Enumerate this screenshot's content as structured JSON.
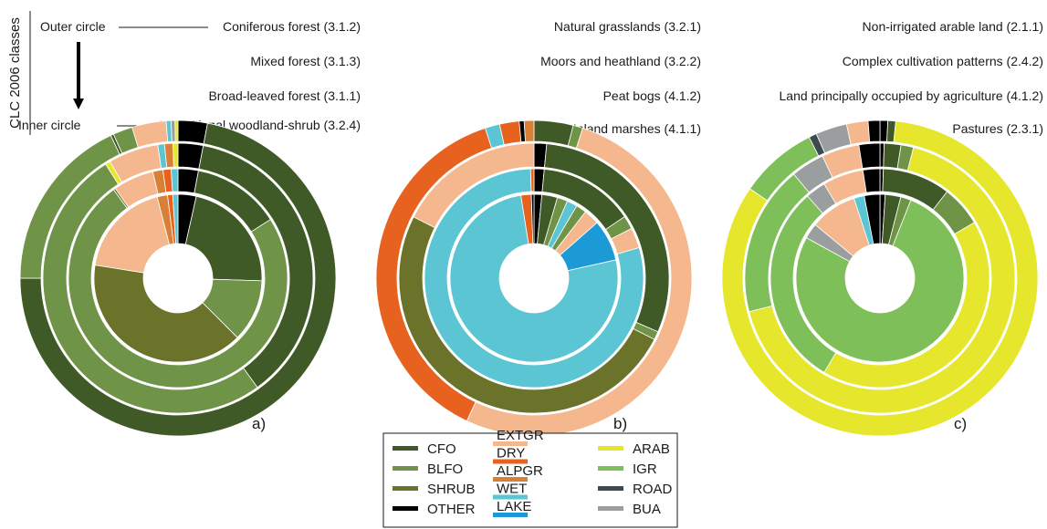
{
  "figure": {
    "vertical_title": "CLC 2006 classes",
    "outer_label": "Outer circle",
    "inner_label": "Inner circle"
  },
  "legend": {
    "items": [
      {
        "code": "CFO",
        "color": "#3f5a27"
      },
      {
        "code": "BLFO",
        "color": "#6f9347"
      },
      {
        "code": "SHRUB",
        "color": "#6b7229"
      },
      {
        "code": "OTHER",
        "color": "#000000"
      },
      {
        "code": "EXTGR",
        "color": "#f5b78e"
      },
      {
        "code": "DRY",
        "color": "#e8621f"
      },
      {
        "code": "ALPGR",
        "color": "#d98038"
      },
      {
        "code": "WET",
        "color": "#5bc5d3"
      },
      {
        "code": "LAKE",
        "color": "#1b9ad6"
      },
      {
        "code": "ARAB",
        "color": "#e6e62c"
      },
      {
        "code": "IGR",
        "color": "#7fbf5a"
      },
      {
        "code": "ROAD",
        "color": "#3d4a4f"
      },
      {
        "code": "BUA",
        "color": "#9b9e9e"
      }
    ]
  },
  "chart_data": [
    {
      "type": "pie",
      "panel_label": "a)",
      "ring_labels": [
        "Coniferous forest (3.1.2)",
        "Mixed forest (3.1.3)",
        "Broad-leaved forest (3.1.1)",
        "Transitional woodland-shrub (3.2.4)"
      ],
      "rings": [
        {
          "name": "Coniferous forest (3.1.2)",
          "slices": [
            {
              "cls": "OTHER",
              "value": 3
            },
            {
              "cls": "CFO",
              "value": 72
            },
            {
              "cls": "BLFO",
              "value": 18
            },
            {
              "cls": "CFO",
              "value": 0.3
            },
            {
              "cls": "BLFO",
              "value": 2
            },
            {
              "cls": "EXTGR",
              "value": 3.5
            },
            {
              "cls": "WET",
              "value": 0.5
            },
            {
              "cls": "BUA",
              "value": 0.4
            },
            {
              "cls": "ARAB",
              "value": 0.3
            }
          ]
        },
        {
          "name": "Mixed forest (3.1.3)",
          "slices": [
            {
              "cls": "OTHER",
              "value": 3
            },
            {
              "cls": "CFO",
              "value": 37
            },
            {
              "cls": "BLFO",
              "value": 51
            },
            {
              "cls": "ARAB",
              "value": 0.6
            },
            {
              "cls": "EXTGR",
              "value": 6
            },
            {
              "cls": "WET",
              "value": 0.8
            },
            {
              "cls": "ALPGR",
              "value": 1
            },
            {
              "cls": "ARAB",
              "value": 0.6
            }
          ]
        },
        {
          "name": "Broad-leaved forest (3.1.1)",
          "slices": [
            {
              "cls": "OTHER",
              "value": 3
            },
            {
              "cls": "CFO",
              "value": 13
            },
            {
              "cls": "BLFO",
              "value": 74
            },
            {
              "cls": "SHRUB",
              "value": 0.3
            },
            {
              "cls": "EXTGR",
              "value": 6
            },
            {
              "cls": "ALPGR",
              "value": 1.5
            },
            {
              "cls": "DRY",
              "value": 1.2
            },
            {
              "cls": "WET",
              "value": 1
            }
          ]
        },
        {
          "name": "Transitional woodland-shrub (3.2.4)",
          "slices": [
            {
              "cls": "OTHER",
              "value": 3.5
            },
            {
              "cls": "CFO",
              "value": 22
            },
            {
              "cls": "BLFO",
              "value": 12
            },
            {
              "cls": "SHRUB",
              "value": 40
            },
            {
              "cls": "EXTGR",
              "value": 18.5
            },
            {
              "cls": "ALPGR",
              "value": 2
            },
            {
              "cls": "DRY",
              "value": 1
            },
            {
              "cls": "WET",
              "value": 1
            }
          ]
        }
      ]
    },
    {
      "type": "pie",
      "panel_label": "b)",
      "ring_labels": [
        "Natural grasslands (3.2.1)",
        "Moors and heathland  (3.2.2)",
        "Peat bogs (4.1.2)",
        "Inland marshes (4.1.1)"
      ],
      "rings": [
        {
          "name": "Natural grasslands (3.2.1)",
          "slices": [
            {
              "cls": "CFO",
              "value": 4
            },
            {
              "cls": "BLFO",
              "value": 1
            },
            {
              "cls": "EXTGR",
              "value": 52
            },
            {
              "cls": "DRY",
              "value": 38
            },
            {
              "cls": "WET",
              "value": 1.5
            },
            {
              "cls": "DRY",
              "value": 2
            },
            {
              "cls": "OTHER",
              "value": 0.5
            },
            {
              "cls": "ALPGR",
              "value": 1
            }
          ]
        },
        {
          "name": "Moors and heathland  (3.2.2)",
          "slices": [
            {
              "cls": "OTHER",
              "value": 1.5
            },
            {
              "cls": "CFO",
              "value": 30
            },
            {
              "cls": "BLFO",
              "value": 1
            },
            {
              "cls": "SHRUB",
              "value": 50
            },
            {
              "cls": "EXTGR",
              "value": 17.5
            }
          ]
        },
        {
          "name": "Peat bogs (4.1.2)",
          "slices": [
            {
              "cls": "OTHER",
              "value": 1.5
            },
            {
              "cls": "CFO",
              "value": 14
            },
            {
              "cls": "BLFO",
              "value": 2
            },
            {
              "cls": "EXTGR",
              "value": 3
            },
            {
              "cls": "WET",
              "value": 79
            },
            {
              "cls": "DRY",
              "value": 0.5
            }
          ]
        },
        {
          "name": "Inland marshes (4.1.1)",
          "slices": [
            {
              "cls": "OTHER",
              "value": 1.5
            },
            {
              "cls": "CFO",
              "value": 3
            },
            {
              "cls": "BLFO",
              "value": 2
            },
            {
              "cls": "WET",
              "value": 2
            },
            {
              "cls": "BLFO",
              "value": 2
            },
            {
              "cls": "EXTGR",
              "value": 3
            },
            {
              "cls": "LAKE",
              "value": 8
            },
            {
              "cls": "WET",
              "value": 76
            },
            {
              "cls": "DRY",
              "value": 2
            },
            {
              "cls": "OTHER",
              "value": 0.5
            }
          ]
        }
      ]
    },
    {
      "type": "pie",
      "panel_label": "c)",
      "ring_labels": [
        "Non-irrigated arable land (2.1.1)",
        "Complex cultivation patterns (2.4.2)",
        "Land principally occupied by agriculture (4.1.2)",
        "Pastures (2.3.1)"
      ],
      "rings": [
        {
          "name": "Non-irrigated arable land (2.1.1)",
          "slices": [
            {
              "cls": "OTHER",
              "value": 0.8
            },
            {
              "cls": "CFO",
              "value": 0.8
            },
            {
              "cls": "ARAB",
              "value": 83
            },
            {
              "cls": "IGR",
              "value": 8
            },
            {
              "cls": "ROAD",
              "value": 0.8
            },
            {
              "cls": "BUA",
              "value": 3.2
            },
            {
              "cls": "EXTGR",
              "value": 2.2
            },
            {
              "cls": "OTHER",
              "value": 1.2
            }
          ]
        },
        {
          "name": "Complex cultivation patterns (2.4.2)",
          "slices": [
            {
              "cls": "OTHER",
              "value": 0.5
            },
            {
              "cls": "CFO",
              "value": 2
            },
            {
              "cls": "BLFO",
              "value": 1.5
            },
            {
              "cls": "ARAB",
              "value": 67
            },
            {
              "cls": "IGR",
              "value": 18
            },
            {
              "cls": "BUA",
              "value": 4
            },
            {
              "cls": "EXTGR",
              "value": 4.5
            },
            {
              "cls": "OTHER",
              "value": 2.5
            }
          ]
        },
        {
          "name": "Land principally occupied by agriculture (4.1.2)",
          "slices": [
            {
              "cls": "OTHER",
              "value": 0.5
            },
            {
              "cls": "CFO",
              "value": 10
            },
            {
              "cls": "BLFO",
              "value": 6
            },
            {
              "cls": "ARAB",
              "value": 42
            },
            {
              "cls": "IGR",
              "value": 30
            },
            {
              "cls": "BUA",
              "value": 3
            },
            {
              "cls": "EXTGR",
              "value": 6
            },
            {
              "cls": "OTHER",
              "value": 2.5
            }
          ]
        },
        {
          "name": "Pastures (2.3.1)",
          "slices": [
            {
              "cls": "OTHER",
              "value": 1
            },
            {
              "cls": "CFO",
              "value": 3
            },
            {
              "cls": "BLFO",
              "value": 2
            },
            {
              "cls": "IGR",
              "value": 77
            },
            {
              "cls": "BUA",
              "value": 3
            },
            {
              "cls": "EXTGR",
              "value": 9
            },
            {
              "cls": "WET",
              "value": 2
            },
            {
              "cls": "OTHER",
              "value": 3
            }
          ]
        }
      ]
    }
  ]
}
